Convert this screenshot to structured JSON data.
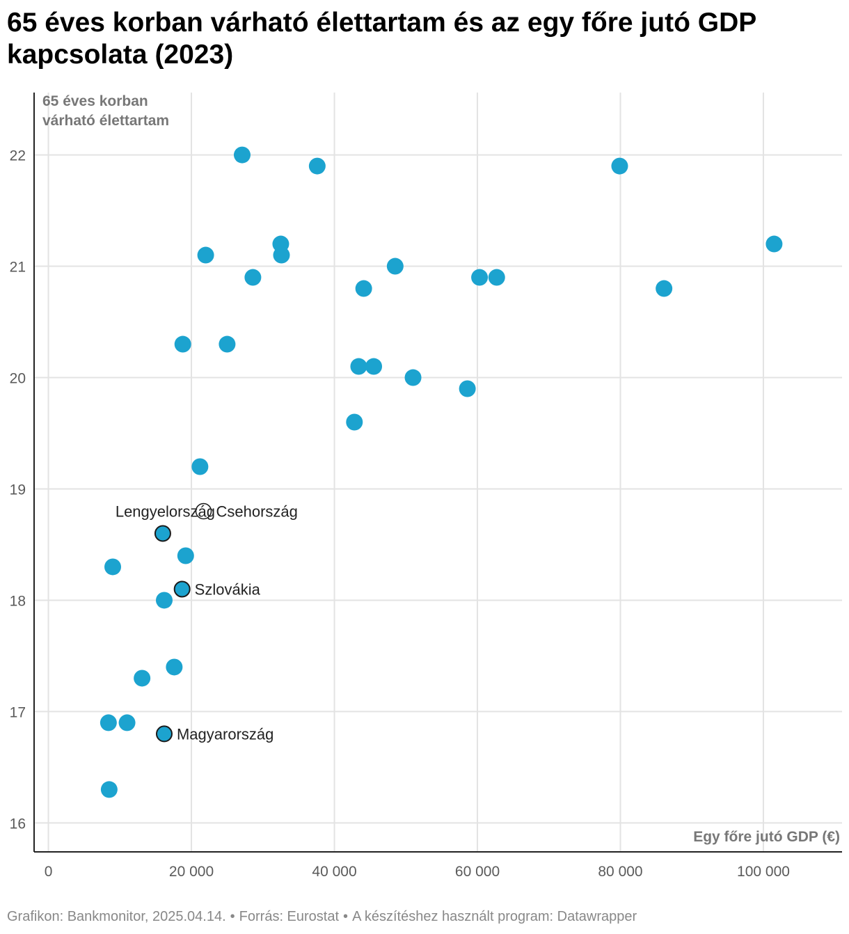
{
  "title": "65 éves korban várható élettartam és az egy főre jutó GDP kapcsolata (2023)",
  "colors": {
    "point": "#1ca3cf",
    "grid": "#e3e3e3",
    "axis": "#222222",
    "highlight_stroke": "#1a1a1a"
  },
  "chart_data": {
    "type": "scatter",
    "title": "65 éves korban várható élettartam és az egy főre jutó GDP kapcsolata (2023)",
    "xlabel": "Egy főre jutó GDP (€)",
    "ylabel_lines": [
      "65 éves korban",
      "várható élettartam"
    ],
    "xlim": [
      -2000,
      111000
    ],
    "ylim": [
      15.74,
      22.56
    ],
    "x_ticks": [
      0,
      20000,
      40000,
      60000,
      80000,
      100000
    ],
    "x_tick_labels": [
      "0",
      "20 000",
      "40 000",
      "60 000",
      "80 000",
      "100 000"
    ],
    "y_ticks": [
      16,
      17,
      18,
      19,
      20,
      21,
      22
    ],
    "y_tick_labels": [
      "16",
      "17",
      "18",
      "19",
      "20",
      "21",
      "22"
    ],
    "grid": true,
    "points": [
      {
        "x": 27100,
        "y": 22.0
      },
      {
        "x": 37600,
        "y": 21.9
      },
      {
        "x": 79900,
        "y": 21.9
      },
      {
        "x": 32500,
        "y": 21.2
      },
      {
        "x": 101500,
        "y": 21.2
      },
      {
        "x": 22000,
        "y": 21.1
      },
      {
        "x": 32600,
        "y": 21.1
      },
      {
        "x": 48500,
        "y": 21.0
      },
      {
        "x": 28600,
        "y": 20.9
      },
      {
        "x": 60300,
        "y": 20.9
      },
      {
        "x": 62700,
        "y": 20.9
      },
      {
        "x": 44100,
        "y": 20.8
      },
      {
        "x": 86100,
        "y": 20.8
      },
      {
        "x": 18800,
        "y": 20.3
      },
      {
        "x": 25000,
        "y": 20.3
      },
      {
        "x": 43400,
        "y": 20.1
      },
      {
        "x": 45500,
        "y": 20.1
      },
      {
        "x": 51000,
        "y": 20.0
      },
      {
        "x": 58600,
        "y": 19.9
      },
      {
        "x": 42800,
        "y": 19.6
      },
      {
        "x": 21200,
        "y": 19.2
      },
      {
        "x": 19200,
        "y": 18.4
      },
      {
        "x": 9000,
        "y": 18.3
      },
      {
        "x": 16200,
        "y": 18.0
      },
      {
        "x": 17600,
        "y": 17.4
      },
      {
        "x": 13100,
        "y": 17.3
      },
      {
        "x": 8400,
        "y": 16.9
      },
      {
        "x": 11000,
        "y": 16.9
      },
      {
        "x": 8500,
        "y": 16.3
      }
    ],
    "highlighted": [
      {
        "label": "Csehország",
        "x": 21700,
        "y": 18.8,
        "label_side": "right",
        "hollow": true
      },
      {
        "label": "Lengyelország",
        "x": 16000,
        "y": 18.6,
        "label_side": "left-above",
        "hollow": false
      },
      {
        "label": "Szlovákia",
        "x": 18700,
        "y": 18.1,
        "label_side": "right",
        "hollow": false
      },
      {
        "label": "Magyarország",
        "x": 16200,
        "y": 16.8,
        "label_side": "right",
        "hollow": false
      }
    ]
  },
  "footer": {
    "credit": "Grafikon: Bankmonitor, 2025.04.14.",
    "source": "Forrás: Eurostat",
    "tool": "A készítéshez használt program: Datawrapper",
    "separator": "•"
  }
}
